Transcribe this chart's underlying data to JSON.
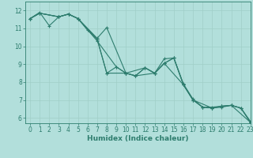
{
  "xlabel": "Humidex (Indice chaleur)",
  "background_color": "#b2dfdb",
  "grid_color": "#a0cec8",
  "line_color": "#2e7d6e",
  "xlim": [
    -0.5,
    23
  ],
  "ylim": [
    5.7,
    12.5
  ],
  "xticks": [
    0,
    1,
    2,
    3,
    4,
    5,
    6,
    7,
    8,
    9,
    10,
    11,
    12,
    13,
    14,
    15,
    16,
    17,
    18,
    19,
    20,
    21,
    22,
    23
  ],
  "yticks": [
    6,
    7,
    8,
    9,
    10,
    11,
    12
  ],
  "series": [
    {
      "x": [
        0,
        1,
        2,
        3,
        4,
        5,
        7,
        8,
        10,
        11,
        12,
        13,
        14,
        16,
        17,
        19,
        20,
        21,
        22,
        23
      ],
      "y": [
        11.55,
        11.9,
        11.15,
        11.65,
        11.8,
        11.55,
        10.45,
        11.05,
        8.5,
        8.35,
        8.8,
        8.5,
        9.05,
        7.85,
        7.0,
        6.55,
        6.6,
        6.7,
        6.55,
        5.75
      ]
    },
    {
      "x": [
        0,
        1,
        3,
        4,
        5,
        7,
        9,
        10,
        11,
        13,
        14,
        15,
        16,
        17,
        18,
        19,
        20,
        21,
        23
      ],
      "y": [
        11.55,
        11.85,
        11.65,
        11.8,
        11.55,
        10.3,
        8.85,
        8.5,
        8.35,
        8.5,
        9.3,
        9.35,
        7.9,
        7.05,
        6.6,
        6.6,
        6.65,
        6.7,
        5.75
      ]
    },
    {
      "x": [
        0,
        1,
        3,
        4,
        5,
        7,
        8,
        9,
        10,
        12,
        13,
        14,
        15,
        16,
        17,
        18,
        19,
        20,
        21,
        22,
        23
      ],
      "y": [
        11.55,
        11.85,
        11.65,
        11.8,
        11.55,
        10.4,
        8.5,
        8.85,
        8.5,
        8.8,
        8.5,
        9.05,
        9.35,
        7.85,
        7.0,
        6.6,
        6.55,
        6.65,
        6.7,
        6.55,
        5.8
      ]
    },
    {
      "x": [
        0,
        1,
        3,
        4,
        5,
        6,
        7,
        8,
        10,
        11,
        12,
        13,
        14,
        15,
        16,
        17,
        18,
        19,
        20,
        21,
        22,
        23
      ],
      "y": [
        11.55,
        11.85,
        11.65,
        11.8,
        11.55,
        10.9,
        10.4,
        8.5,
        8.5,
        8.35,
        8.8,
        8.5,
        9.05,
        9.35,
        7.85,
        7.0,
        6.6,
        6.55,
        6.65,
        6.7,
        6.55,
        5.75
      ]
    }
  ]
}
